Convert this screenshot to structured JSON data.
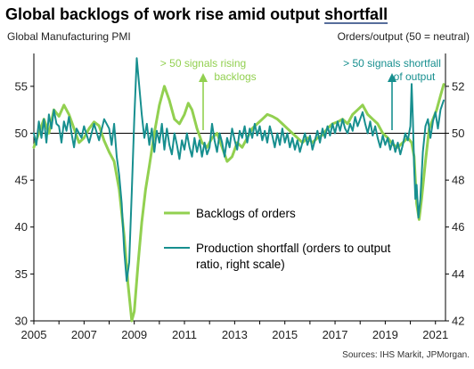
{
  "colors": {
    "backlogs": "#92d050",
    "shortfall": "#178f8f",
    "grid": "#000000",
    "title_underline": "#1f3d7a"
  },
  "chart_data": {
    "type": "line",
    "title_main": "Global backlogs of work rise amid output ",
    "title_emph": "shortfall",
    "left_axis_label": "Global  Manufacturing  PMI",
    "right_axis_label": "Orders/output  (50 = neutral)",
    "x_ticks": [
      "2005",
      "2007",
      "2009",
      "2011",
      "2013",
      "2015",
      "2017",
      "2019",
      "2021"
    ],
    "y_left": {
      "ticks": [
        "30",
        "35",
        "40",
        "45",
        "50",
        "55"
      ],
      "ylim": [
        30,
        58.5
      ]
    },
    "y_right": {
      "ticks": [
        "42",
        "44",
        "46",
        "48",
        "50",
        "52"
      ],
      "ylim": [
        42,
        53.4
      ]
    },
    "reference_line": 50,
    "x_range": [
      2005.0,
      2021.4
    ],
    "annotations": {
      "backlogs_line1": "> 50 signals  rising",
      "backlogs_line2": "backlogs",
      "shortfall_line1": "> 50 signals  shortfall",
      "shortfall_line2": "of output"
    },
    "series": [
      {
        "name": "Backlogs of orders",
        "axis": "left",
        "points": [
          [
            2005.0,
            48.5
          ],
          [
            2005.2,
            50.0
          ],
          [
            2005.4,
            51.5
          ],
          [
            2005.6,
            50.0
          ],
          [
            2005.8,
            52.5
          ],
          [
            2006.0,
            51.8
          ],
          [
            2006.2,
            53.0
          ],
          [
            2006.4,
            52.0
          ],
          [
            2006.6,
            50.5
          ],
          [
            2006.8,
            49.0
          ],
          [
            2007.0,
            49.5
          ],
          [
            2007.2,
            50.5
          ],
          [
            2007.4,
            51.2
          ],
          [
            2007.6,
            50.8
          ],
          [
            2007.8,
            49.2
          ],
          [
            2008.0,
            48.0
          ],
          [
            2008.2,
            47.0
          ],
          [
            2008.4,
            44.0
          ],
          [
            2008.6,
            39.0
          ],
          [
            2008.75,
            34.0
          ],
          [
            2008.9,
            30.0
          ],
          [
            2009.0,
            31.0
          ],
          [
            2009.15,
            36.0
          ],
          [
            2009.3,
            40.5
          ],
          [
            2009.45,
            44.0
          ],
          [
            2009.6,
            46.5
          ],
          [
            2009.8,
            50.0
          ],
          [
            2010.0,
            53.0
          ],
          [
            2010.2,
            55.0
          ],
          [
            2010.4,
            53.5
          ],
          [
            2010.6,
            51.5
          ],
          [
            2010.8,
            51.0
          ],
          [
            2011.0,
            52.0
          ],
          [
            2011.15,
            53.2
          ],
          [
            2011.3,
            52.5
          ],
          [
            2011.5,
            50.5
          ],
          [
            2011.7,
            49.0
          ],
          [
            2011.9,
            48.5
          ],
          [
            2012.1,
            49.5
          ],
          [
            2012.3,
            50.0
          ],
          [
            2012.5,
            48.5
          ],
          [
            2012.7,
            47.0
          ],
          [
            2012.9,
            47.5
          ],
          [
            2013.1,
            49.0
          ],
          [
            2013.3,
            48.5
          ],
          [
            2013.5,
            49.5
          ],
          [
            2013.7,
            50.5
          ],
          [
            2013.9,
            51.0
          ],
          [
            2014.1,
            51.5
          ],
          [
            2014.3,
            52.0
          ],
          [
            2014.5,
            51.8
          ],
          [
            2014.7,
            51.5
          ],
          [
            2014.9,
            51.0
          ],
          [
            2015.1,
            50.5
          ],
          [
            2015.3,
            50.0
          ],
          [
            2015.5,
            49.5
          ],
          [
            2015.7,
            49.0
          ],
          [
            2015.9,
            49.5
          ],
          [
            2016.1,
            49.0
          ],
          [
            2016.3,
            49.5
          ],
          [
            2016.5,
            49.8
          ],
          [
            2016.7,
            50.5
          ],
          [
            2016.9,
            51.0
          ],
          [
            2017.1,
            51.2
          ],
          [
            2017.3,
            51.5
          ],
          [
            2017.5,
            51.0
          ],
          [
            2017.7,
            52.0
          ],
          [
            2017.9,
            52.5
          ],
          [
            2018.1,
            53.0
          ],
          [
            2018.3,
            52.0
          ],
          [
            2018.5,
            51.5
          ],
          [
            2018.7,
            51.0
          ],
          [
            2018.9,
            50.0
          ],
          [
            2019.1,
            49.5
          ],
          [
            2019.3,
            48.8
          ],
          [
            2019.5,
            48.5
          ],
          [
            2019.7,
            49.0
          ],
          [
            2019.9,
            49.5
          ],
          [
            2020.05,
            49.0
          ],
          [
            2020.15,
            47.5
          ],
          [
            2020.25,
            42.5
          ],
          [
            2020.35,
            40.8
          ],
          [
            2020.45,
            43.0
          ],
          [
            2020.6,
            47.0
          ],
          [
            2020.75,
            50.5
          ],
          [
            2020.9,
            51.5
          ],
          [
            2021.05,
            52.5
          ],
          [
            2021.2,
            54.0
          ],
          [
            2021.33,
            55.2
          ]
        ]
      },
      {
        "name": "Production shortfall (orders to output ratio, right scale)",
        "axis": "right",
        "points": [
          [
            2005.0,
            50.0
          ],
          [
            2005.1,
            49.5
          ],
          [
            2005.2,
            50.5
          ],
          [
            2005.3,
            49.8
          ],
          [
            2005.4,
            50.6
          ],
          [
            2005.5,
            49.6
          ],
          [
            2005.6,
            50.8
          ],
          [
            2005.7,
            50.2
          ],
          [
            2005.8,
            51.0
          ],
          [
            2005.9,
            50.4
          ],
          [
            2006.0,
            50.3
          ],
          [
            2006.1,
            49.6
          ],
          [
            2006.2,
            50.5
          ],
          [
            2006.3,
            50.1
          ],
          [
            2006.4,
            50.7
          ],
          [
            2006.5,
            50.0
          ],
          [
            2006.6,
            49.4
          ],
          [
            2006.7,
            50.2
          ],
          [
            2006.8,
            50.0
          ],
          [
            2006.9,
            49.8
          ],
          [
            2007.0,
            50.3
          ],
          [
            2007.2,
            49.6
          ],
          [
            2007.4,
            50.4
          ],
          [
            2007.6,
            49.7
          ],
          [
            2007.8,
            50.6
          ],
          [
            2008.0,
            50.2
          ],
          [
            2008.1,
            49.5
          ],
          [
            2008.2,
            50.4
          ],
          [
            2008.3,
            49.0
          ],
          [
            2008.4,
            48.2
          ],
          [
            2008.5,
            47.0
          ],
          [
            2008.6,
            45.0
          ],
          [
            2008.7,
            43.7
          ],
          [
            2008.8,
            44.5
          ],
          [
            2008.9,
            47.5
          ],
          [
            2009.0,
            50.6
          ],
          [
            2009.1,
            53.2
          ],
          [
            2009.2,
            52.0
          ],
          [
            2009.3,
            50.8
          ],
          [
            2009.4,
            49.8
          ],
          [
            2009.5,
            50.4
          ],
          [
            2009.6,
            49.5
          ],
          [
            2009.7,
            50.2
          ],
          [
            2009.8,
            49.2
          ],
          [
            2009.9,
            50.1
          ],
          [
            2010.0,
            49.6
          ],
          [
            2010.1,
            50.4
          ],
          [
            2010.2,
            49.3
          ],
          [
            2010.3,
            50.2
          ],
          [
            2010.4,
            49.5
          ],
          [
            2010.5,
            49.1
          ],
          [
            2010.6,
            50.0
          ],
          [
            2010.7,
            49.5
          ],
          [
            2010.8,
            48.9
          ],
          [
            2010.9,
            49.7
          ],
          [
            2011.0,
            49.3
          ],
          [
            2011.1,
            50.0
          ],
          [
            2011.2,
            49.4
          ],
          [
            2011.3,
            49.0
          ],
          [
            2011.4,
            49.8
          ],
          [
            2011.5,
            49.2
          ],
          [
            2011.6,
            49.7
          ],
          [
            2011.7,
            49.0
          ],
          [
            2011.8,
            49.6
          ],
          [
            2011.9,
            49.1
          ],
          [
            2012.0,
            49.4
          ],
          [
            2012.1,
            50.4
          ],
          [
            2012.2,
            49.7
          ],
          [
            2012.3,
            49.2
          ],
          [
            2012.4,
            50.0
          ],
          [
            2012.5,
            49.6
          ],
          [
            2012.6,
            49.0
          ],
          [
            2012.7,
            49.8
          ],
          [
            2012.8,
            49.4
          ],
          [
            2012.9,
            50.2
          ],
          [
            2013.0,
            49.7
          ],
          [
            2013.1,
            49.3
          ],
          [
            2013.2,
            50.1
          ],
          [
            2013.3,
            49.8
          ],
          [
            2013.4,
            50.3
          ],
          [
            2013.5,
            49.6
          ],
          [
            2013.6,
            50.2
          ],
          [
            2013.7,
            49.8
          ],
          [
            2013.8,
            50.4
          ],
          [
            2013.9,
            49.9
          ],
          [
            2014.0,
            50.3
          ],
          [
            2014.1,
            49.7
          ],
          [
            2014.2,
            50.1
          ],
          [
            2014.3,
            49.6
          ],
          [
            2014.4,
            50.3
          ],
          [
            2014.5,
            49.9
          ],
          [
            2014.6,
            49.4
          ],
          [
            2014.7,
            50.0
          ],
          [
            2014.8,
            49.5
          ],
          [
            2014.9,
            50.2
          ],
          [
            2015.0,
            49.6
          ],
          [
            2015.1,
            50.0
          ],
          [
            2015.2,
            49.4
          ],
          [
            2015.3,
            49.8
          ],
          [
            2015.4,
            49.3
          ],
          [
            2015.5,
            49.7
          ],
          [
            2015.6,
            49.2
          ],
          [
            2015.7,
            49.6
          ],
          [
            2015.8,
            50.0
          ],
          [
            2015.9,
            49.5
          ],
          [
            2016.0,
            49.9
          ],
          [
            2016.1,
            49.3
          ],
          [
            2016.2,
            49.7
          ],
          [
            2016.3,
            50.1
          ],
          [
            2016.4,
            49.6
          ],
          [
            2016.5,
            50.2
          ],
          [
            2016.6,
            49.8
          ],
          [
            2016.7,
            50.3
          ],
          [
            2016.8,
            49.9
          ],
          [
            2016.9,
            50.4
          ],
          [
            2017.0,
            50.0
          ],
          [
            2017.1,
            50.5
          ],
          [
            2017.2,
            50.1
          ],
          [
            2017.3,
            50.6
          ],
          [
            2017.4,
            50.2
          ],
          [
            2017.5,
            50.0
          ],
          [
            2017.6,
            50.4
          ],
          [
            2017.7,
            50.1
          ],
          [
            2017.8,
            50.7
          ],
          [
            2017.9,
            50.3
          ],
          [
            2018.0,
            50.6
          ],
          [
            2018.1,
            50.9
          ],
          [
            2018.2,
            50.4
          ],
          [
            2018.3,
            50.0
          ],
          [
            2018.4,
            50.5
          ],
          [
            2018.5,
            49.9
          ],
          [
            2018.6,
            50.3
          ],
          [
            2018.7,
            49.8
          ],
          [
            2018.8,
            49.4
          ],
          [
            2018.9,
            49.9
          ],
          [
            2019.0,
            49.5
          ],
          [
            2019.1,
            49.8
          ],
          [
            2019.2,
            49.3
          ],
          [
            2019.3,
            49.7
          ],
          [
            2019.4,
            49.2
          ],
          [
            2019.5,
            49.6
          ],
          [
            2019.6,
            49.1
          ],
          [
            2019.7,
            49.5
          ],
          [
            2019.8,
            50.0
          ],
          [
            2019.9,
            49.7
          ],
          [
            2020.0,
            50.3
          ],
          [
            2020.05,
            52.1
          ],
          [
            2020.1,
            50.6
          ],
          [
            2020.15,
            48.6
          ],
          [
            2020.2,
            47.2
          ],
          [
            2020.25,
            47.8
          ],
          [
            2020.32,
            46.4
          ],
          [
            2020.4,
            47.2
          ],
          [
            2020.5,
            49.2
          ],
          [
            2020.6,
            50.3
          ],
          [
            2020.7,
            50.6
          ],
          [
            2020.8,
            49.8
          ],
          [
            2020.9,
            50.5
          ],
          [
            2021.0,
            50.9
          ],
          [
            2021.1,
            50.2
          ],
          [
            2021.2,
            51.0
          ],
          [
            2021.33,
            51.4
          ]
        ]
      }
    ],
    "legend_placement": "center"
  },
  "source": "Sources: IHS Markit, JPMorgan."
}
